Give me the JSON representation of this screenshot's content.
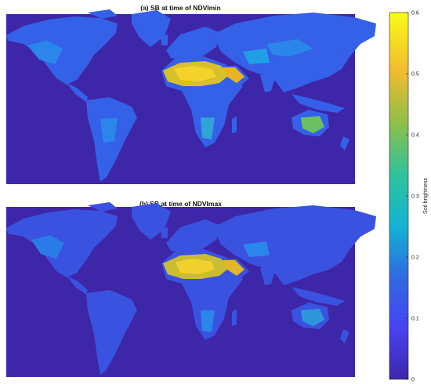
{
  "panels": [
    {
      "title": "(a) SB at time of NDVImin"
    },
    {
      "title": "(b) SB at time of NDVImax"
    }
  ],
  "colorbar": {
    "label": "Soil brightness",
    "min": 0,
    "max": 0.6,
    "ticks": [
      "0",
      "0.1",
      "0.2",
      "0.3",
      "0.4",
      "0.5",
      "0.6"
    ],
    "colormap": [
      "#3e26a8",
      "#4743f4",
      "#2c89f2",
      "#13b4d3",
      "#40c37d",
      "#b7bd34",
      "#fbbd27",
      "#f9fb15"
    ]
  },
  "colors": {
    "ocean": "#3e26a8",
    "land_low": "#2f6be0",
    "land_mid": "#1fa0e6",
    "desert_a": "#f2c21f",
    "desert_b": "#e6c32a"
  }
}
